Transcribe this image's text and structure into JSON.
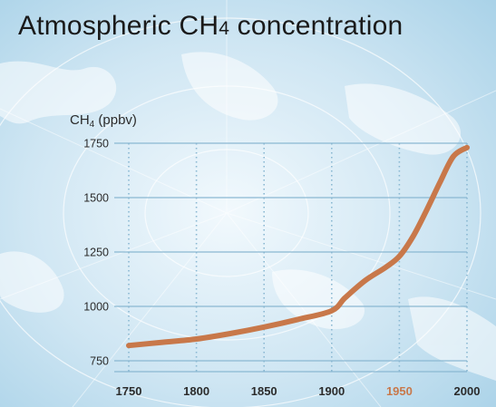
{
  "title": {
    "main": "Atmospheric CH",
    "sub": "4",
    "rest": " concentration"
  },
  "chart_data": {
    "type": "line",
    "title": "Atmospheric CH4 concentration",
    "ylabel": {
      "main": "CH",
      "sub": "4",
      "rest": " (ppbv)"
    },
    "xlabel": "",
    "xlim": [
      1750,
      2000
    ],
    "ylim": [
      700,
      1750
    ],
    "x_ticks": [
      {
        "value": 1750,
        "label": "1750",
        "highlight": false
      },
      {
        "value": 1800,
        "label": "1800",
        "highlight": false
      },
      {
        "value": 1850,
        "label": "1850",
        "highlight": false
      },
      {
        "value": 1900,
        "label": "1900",
        "highlight": false
      },
      {
        "value": 1950,
        "label": "1950",
        "highlight": true
      },
      {
        "value": 2000,
        "label": "2000",
        "highlight": false
      }
    ],
    "y_ticks": [
      {
        "value": 750,
        "label": "750"
      },
      {
        "value": 1000,
        "label": "1000"
      },
      {
        "value": 1250,
        "label": "1250"
      },
      {
        "value": 1500,
        "label": "1500"
      },
      {
        "value": 1750,
        "label": "1750"
      }
    ],
    "grid": true,
    "series": [
      {
        "x": [
          1750,
          1775,
          1800,
          1825,
          1850,
          1875,
          1900,
          1910,
          1925,
          1940,
          1950,
          1960,
          1970,
          1980,
          1990,
          2000
        ],
        "y": [
          820,
          835,
          850,
          875,
          905,
          940,
          980,
          1040,
          1120,
          1180,
          1230,
          1320,
          1440,
          1570,
          1690,
          1730
        ]
      }
    ],
    "colors": {
      "line": "#c8784a",
      "grid": "#8ab8d2",
      "tick_text": "#2b2b2b",
      "tick_highlight": "#c8784a"
    }
  }
}
